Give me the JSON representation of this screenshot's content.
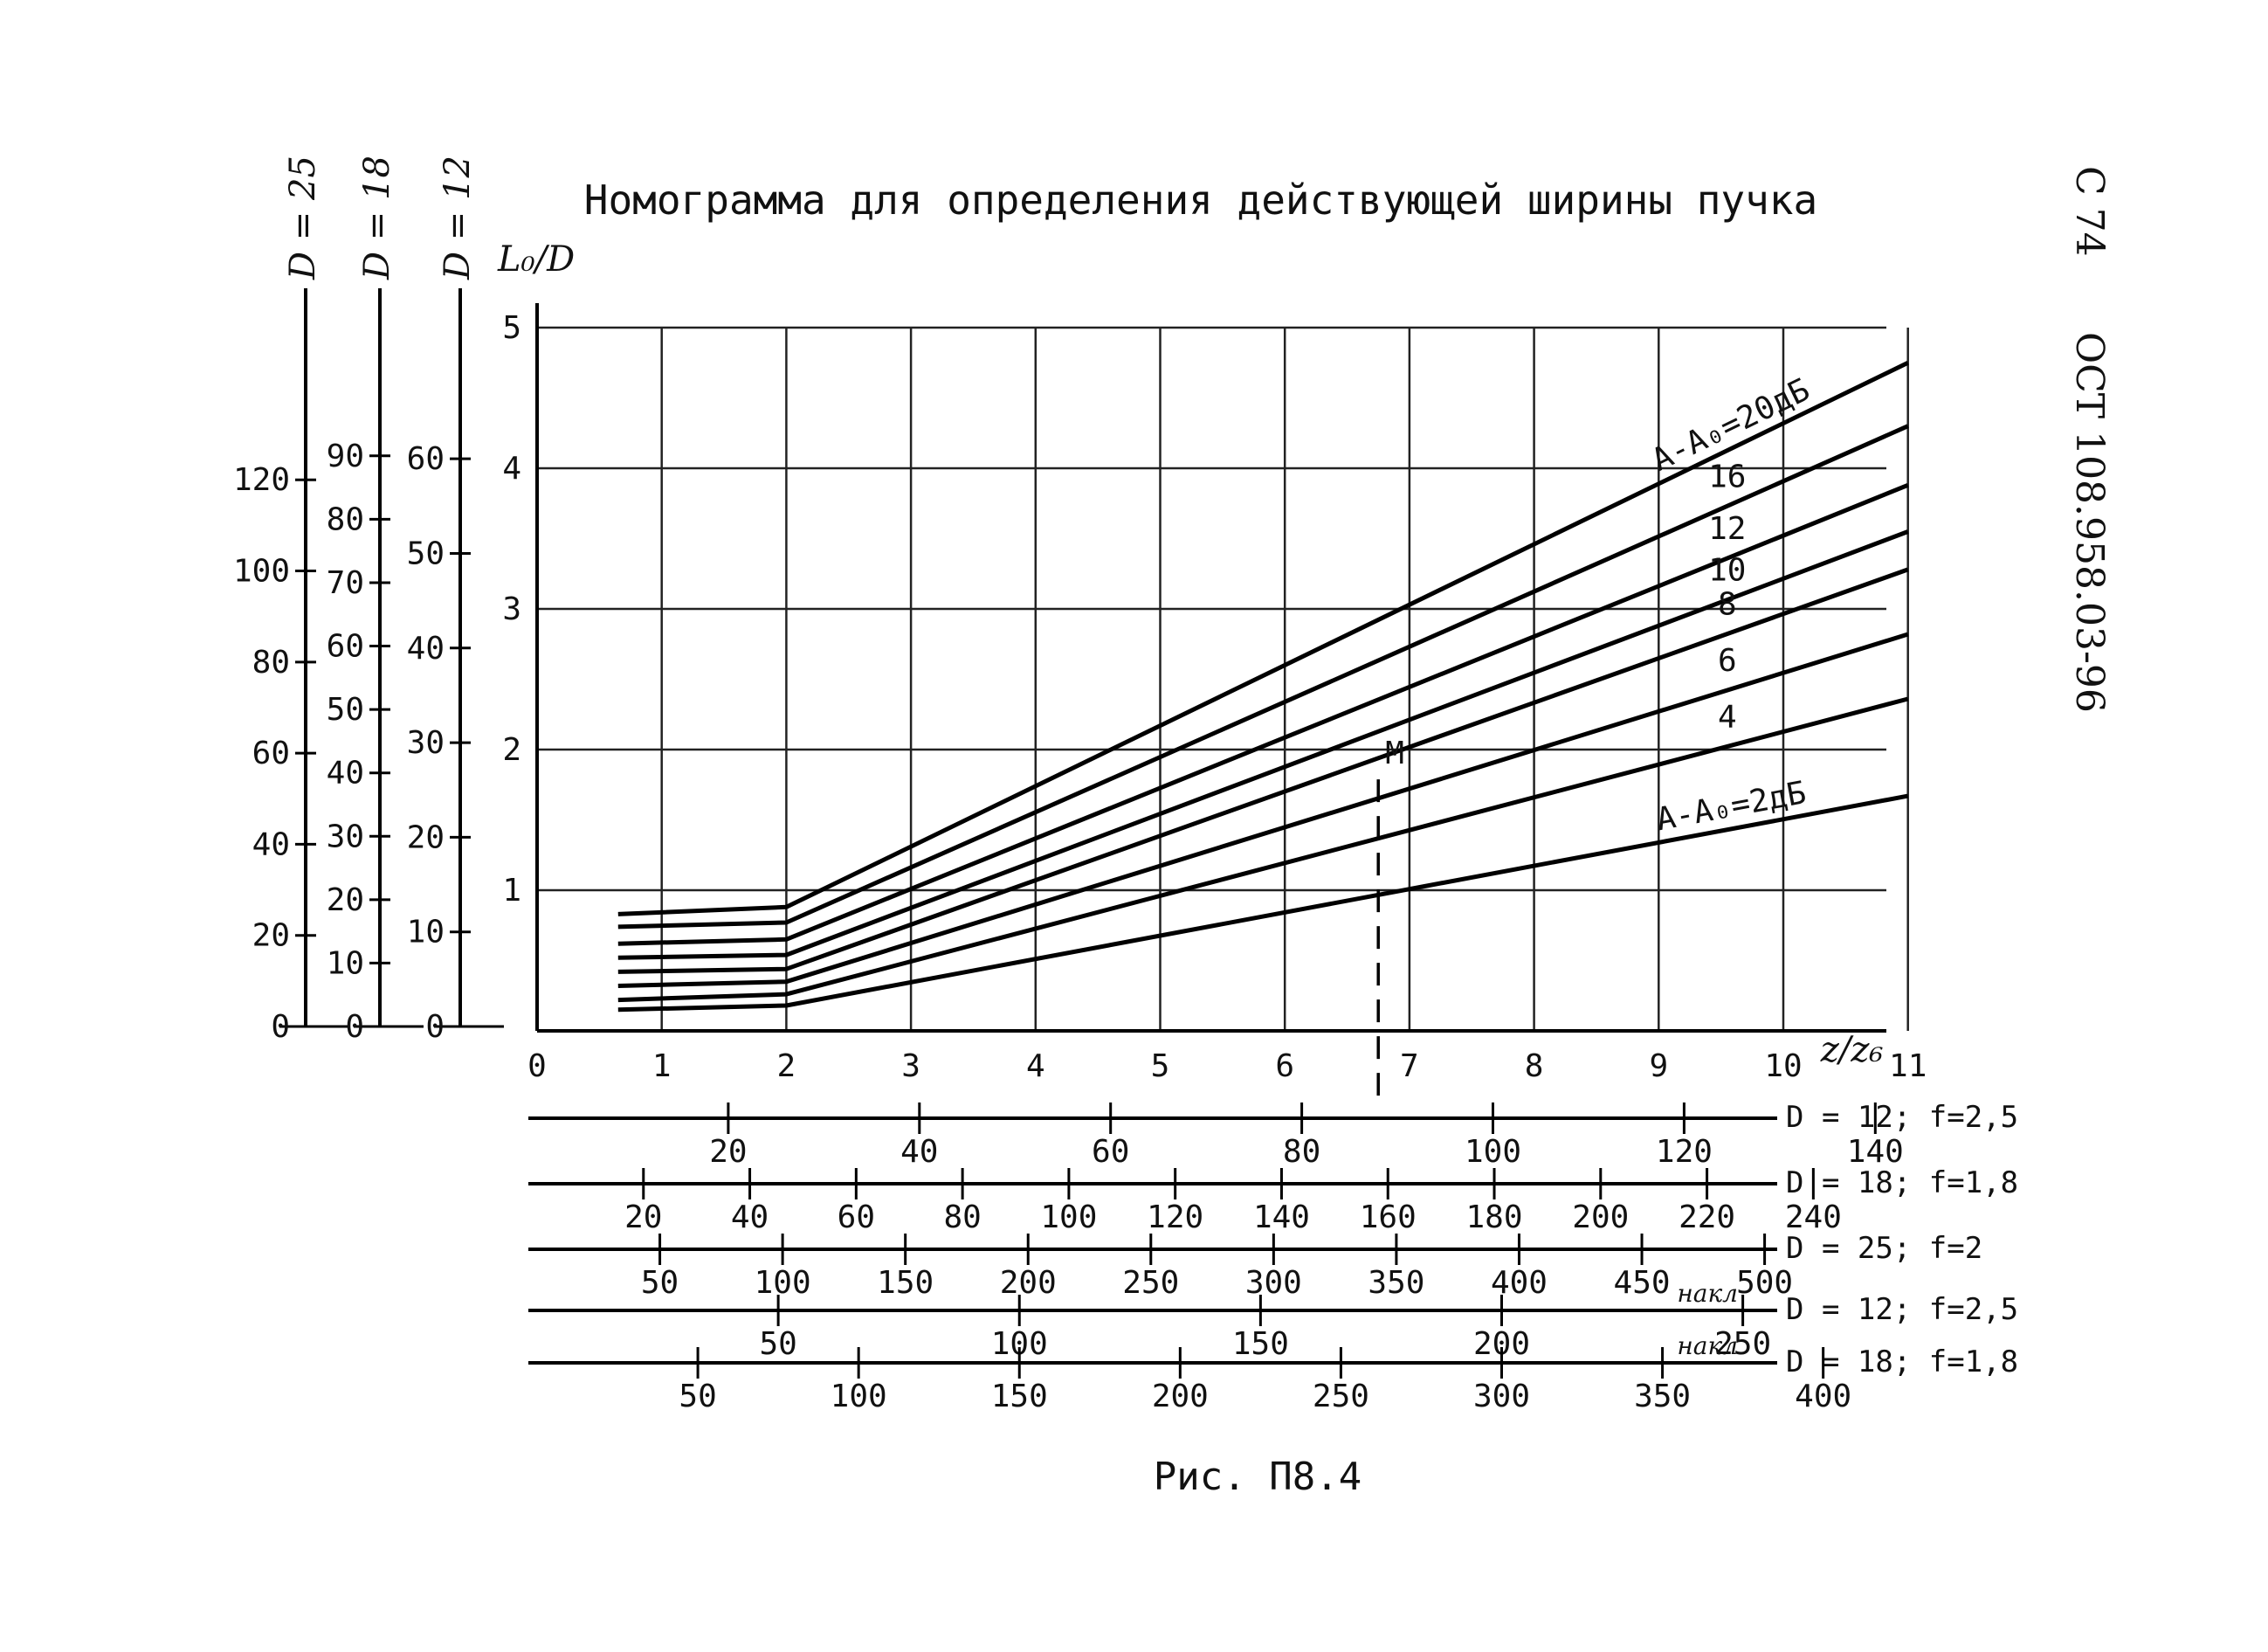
{
  "page": {
    "title": "Номограмма для определения действующей ширины пучка",
    "side_page": "С 74",
    "side_standard": "ОСТ 108.958.03-96",
    "caption": "Рис. П8.4"
  },
  "chart_data": {
    "type": "line",
    "title": "Номограмма для определения действующей ширины пучка",
    "xlabel": "z/z₆",
    "ylabel": "L₀/D",
    "xlim": [
      0,
      11
    ],
    "ylim": [
      0,
      5
    ],
    "x_ticks": [
      0,
      1,
      2,
      3,
      4,
      5,
      6,
      7,
      8,
      9,
      10,
      11
    ],
    "y_ticks": [
      1,
      2,
      3,
      4,
      5
    ],
    "grid": true,
    "series": [
      {
        "name": "А-А₀=2дБ",
        "label": "А-А₀=2дБ",
        "x": [
          0.65,
          2.0,
          11.0
        ],
        "y": [
          0.15,
          0.18,
          1.67
        ]
      },
      {
        "name": "4",
        "label": "4",
        "x": [
          0.65,
          2.0,
          11.0
        ],
        "y": [
          0.22,
          0.26,
          2.36
        ]
      },
      {
        "name": "6",
        "label": "6",
        "x": [
          0.65,
          2.0,
          11.0
        ],
        "y": [
          0.32,
          0.35,
          2.82
        ]
      },
      {
        "name": "8",
        "label": "8",
        "x": [
          0.65,
          2.0,
          11.0
        ],
        "y": [
          0.42,
          0.44,
          3.28
        ]
      },
      {
        "name": "10",
        "label": "10",
        "x": [
          0.65,
          2.0,
          11.0
        ],
        "y": [
          0.52,
          0.54,
          3.55
        ]
      },
      {
        "name": "12",
        "label": "12",
        "x": [
          0.65,
          2.0,
          11.0
        ],
        "y": [
          0.62,
          0.65,
          3.88
        ]
      },
      {
        "name": "16",
        "label": "16",
        "x": [
          0.65,
          2.0,
          11.0
        ],
        "y": [
          0.74,
          0.77,
          4.3
        ]
      },
      {
        "name": "А-А₀=20дБ",
        "label": "А-А₀=20дБ",
        "x": [
          0.65,
          2.0,
          11.0
        ],
        "y": [
          0.83,
          0.88,
          4.75
        ]
      }
    ],
    "annotations": [
      {
        "text": "M",
        "x": 6.75,
        "y": 1.85
      }
    ],
    "example_line_x": 6.75,
    "left_scales": [
      {
        "label": "D = 25",
        "ticks": [
          0,
          20,
          40,
          60,
          80,
          100,
          120
        ],
        "max": 135
      },
      {
        "label": "D = 18",
        "ticks": [
          0,
          10,
          20,
          30,
          40,
          50,
          60,
          70,
          80,
          90
        ],
        "max": 97
      },
      {
        "label": "D = 12",
        "ticks": [
          0,
          10,
          20,
          30,
          40,
          50,
          60
        ],
        "max": 65
      }
    ],
    "bottom_scales": [
      {
        "label": "D = 12; f=2,5",
        "prefix": "",
        "ticks": [
          20,
          40,
          60,
          80,
          100,
          120,
          140
        ],
        "k": 0.0767
      },
      {
        "label": "D = 18; f=1,8",
        "prefix": "",
        "ticks": [
          20,
          40,
          60,
          80,
          100,
          120,
          140,
          160,
          180,
          200,
          220,
          240
        ],
        "k": 0.04267
      },
      {
        "label": "D = 25; f=2",
        "prefix": "",
        "ticks": [
          50,
          100,
          150,
          200,
          250,
          300,
          350,
          400,
          450,
          500
        ],
        "k": 0.0197
      },
      {
        "label": "D = 12; f=2,5",
        "prefix": "накл",
        "ticks": [
          50,
          100,
          150,
          200,
          250
        ],
        "k": 0.0387
      },
      {
        "label": "D = 18; f=1,8",
        "prefix": "накл",
        "ticks": [
          50,
          100,
          150,
          200,
          250,
          300,
          350,
          400
        ],
        "k": 0.0258
      }
    ]
  }
}
